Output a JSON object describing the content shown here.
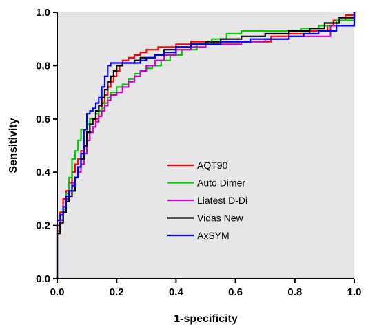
{
  "chart_data": {
    "type": "line",
    "title": "",
    "xlabel": "1-specificity",
    "ylabel": "Sensitivity",
    "xlim": [
      0,
      1
    ],
    "ylim": [
      0,
      1
    ],
    "xticks": [
      "0.0",
      "0.2",
      "0.4",
      "0.6",
      "0.8",
      "1.0"
    ],
    "yticks": [
      "0.0",
      "0.2",
      "0.4",
      "0.6",
      "0.8",
      "1.0"
    ],
    "grid": false,
    "background": "#e6e6e6",
    "legend_position": "center-right",
    "series": [
      {
        "name": "AQT90",
        "color": "#ff0000",
        "x": [
          0,
          0,
          0.01,
          0.01,
          0.02,
          0.02,
          0.03,
          0.04,
          0.05,
          0.06,
          0.07,
          0.08,
          0.09,
          0.1,
          0.11,
          0.12,
          0.13,
          0.14,
          0.15,
          0.16,
          0.17,
          0.18,
          0.19,
          0.2,
          0.21,
          0.22,
          0.24,
          0.26,
          0.28,
          0.3,
          0.32,
          0.34,
          0.36,
          0.4,
          0.45,
          0.5,
          0.55,
          0.62,
          0.7,
          0.72,
          0.78,
          0.85,
          0.91,
          0.93,
          0.97,
          1.0
        ],
        "y": [
          0,
          0.18,
          0.2,
          0.25,
          0.28,
          0.3,
          0.33,
          0.36,
          0.4,
          0.43,
          0.45,
          0.48,
          0.5,
          0.52,
          0.55,
          0.57,
          0.6,
          0.63,
          0.66,
          0.69,
          0.72,
          0.74,
          0.76,
          0.78,
          0.8,
          0.82,
          0.83,
          0.84,
          0.85,
          0.86,
          0.86,
          0.87,
          0.87,
          0.88,
          0.89,
          0.89,
          0.89,
          0.89,
          0.89,
          0.91,
          0.92,
          0.93,
          0.95,
          0.97,
          0.99,
          1.0
        ]
      },
      {
        "name": "Auto Dimer",
        "color": "#00cc00",
        "x": [
          0,
          0,
          0.01,
          0.01,
          0.02,
          0.03,
          0.04,
          0.05,
          0.06,
          0.07,
          0.08,
          0.09,
          0.1,
          0.11,
          0.12,
          0.13,
          0.14,
          0.15,
          0.16,
          0.17,
          0.18,
          0.2,
          0.22,
          0.24,
          0.26,
          0.28,
          0.3,
          0.32,
          0.35,
          0.38,
          0.42,
          0.47,
          0.52,
          0.57,
          0.62,
          0.68,
          0.75,
          0.82,
          0.88,
          0.94,
          1.0
        ],
        "y": [
          0,
          0.17,
          0.18,
          0.22,
          0.26,
          0.32,
          0.38,
          0.45,
          0.48,
          0.52,
          0.56,
          0.56,
          0.58,
          0.6,
          0.6,
          0.62,
          0.63,
          0.64,
          0.66,
          0.68,
          0.7,
          0.72,
          0.73,
          0.75,
          0.77,
          0.78,
          0.79,
          0.8,
          0.82,
          0.84,
          0.86,
          0.88,
          0.9,
          0.92,
          0.93,
          0.93,
          0.93,
          0.94,
          0.95,
          0.97,
          1.0
        ]
      },
      {
        "name": "Liatest D-Di",
        "color": "#cc00cc",
        "x": [
          0,
          0,
          0.01,
          0.02,
          0.03,
          0.04,
          0.05,
          0.06,
          0.07,
          0.08,
          0.09,
          0.1,
          0.11,
          0.12,
          0.13,
          0.14,
          0.15,
          0.16,
          0.17,
          0.18,
          0.2,
          0.22,
          0.24,
          0.26,
          0.28,
          0.3,
          0.33,
          0.36,
          0.4,
          0.45,
          0.5,
          0.55,
          0.62,
          0.7,
          0.78,
          0.85,
          0.92,
          1.0
        ],
        "y": [
          0,
          0.2,
          0.22,
          0.25,
          0.3,
          0.33,
          0.36,
          0.38,
          0.4,
          0.43,
          0.47,
          0.52,
          0.55,
          0.57,
          0.59,
          0.61,
          0.63,
          0.65,
          0.67,
          0.69,
          0.7,
          0.72,
          0.74,
          0.76,
          0.78,
          0.8,
          0.82,
          0.84,
          0.86,
          0.87,
          0.88,
          0.88,
          0.89,
          0.9,
          0.91,
          0.91,
          0.95,
          1.0
        ]
      },
      {
        "name": "Vidas New",
        "color": "#000000",
        "x": [
          0,
          0,
          0.01,
          0.02,
          0.03,
          0.04,
          0.05,
          0.06,
          0.07,
          0.08,
          0.09,
          0.1,
          0.11,
          0.12,
          0.13,
          0.14,
          0.15,
          0.16,
          0.17,
          0.18,
          0.19,
          0.2,
          0.22,
          0.24,
          0.26,
          0.28,
          0.3,
          0.33,
          0.36,
          0.4,
          0.45,
          0.5,
          0.55,
          0.62,
          0.7,
          0.78,
          0.85,
          0.9,
          0.95,
          1.0
        ],
        "y": [
          0,
          0.17,
          0.21,
          0.25,
          0.29,
          0.31,
          0.33,
          0.38,
          0.42,
          0.45,
          0.5,
          0.55,
          0.58,
          0.6,
          0.63,
          0.65,
          0.68,
          0.71,
          0.74,
          0.76,
          0.78,
          0.8,
          0.81,
          0.81,
          0.82,
          0.83,
          0.83,
          0.84,
          0.86,
          0.87,
          0.88,
          0.89,
          0.9,
          0.91,
          0.92,
          0.93,
          0.94,
          0.96,
          0.98,
          1.0
        ]
      },
      {
        "name": "AxSYM",
        "color": "#0000ff",
        "x": [
          0,
          0,
          0.01,
          0.02,
          0.03,
          0.04,
          0.05,
          0.06,
          0.07,
          0.08,
          0.09,
          0.1,
          0.11,
          0.12,
          0.13,
          0.14,
          0.15,
          0.16,
          0.17,
          0.18,
          0.19,
          0.2,
          0.22,
          0.24,
          0.26,
          0.28,
          0.3,
          0.33,
          0.36,
          0.4,
          0.45,
          0.5,
          0.55,
          0.6,
          0.65,
          0.72,
          0.78,
          0.83,
          0.88,
          0.94,
          1.0
        ],
        "y": [
          0,
          0.22,
          0.24,
          0.27,
          0.31,
          0.33,
          0.35,
          0.38,
          0.42,
          0.47,
          0.56,
          0.62,
          0.63,
          0.64,
          0.66,
          0.68,
          0.72,
          0.76,
          0.8,
          0.81,
          0.81,
          0.81,
          0.81,
          0.81,
          0.81,
          0.82,
          0.83,
          0.84,
          0.85,
          0.87,
          0.88,
          0.88,
          0.89,
          0.89,
          0.9,
          0.9,
          0.91,
          0.92,
          0.93,
          0.95,
          1.0
        ]
      }
    ]
  }
}
